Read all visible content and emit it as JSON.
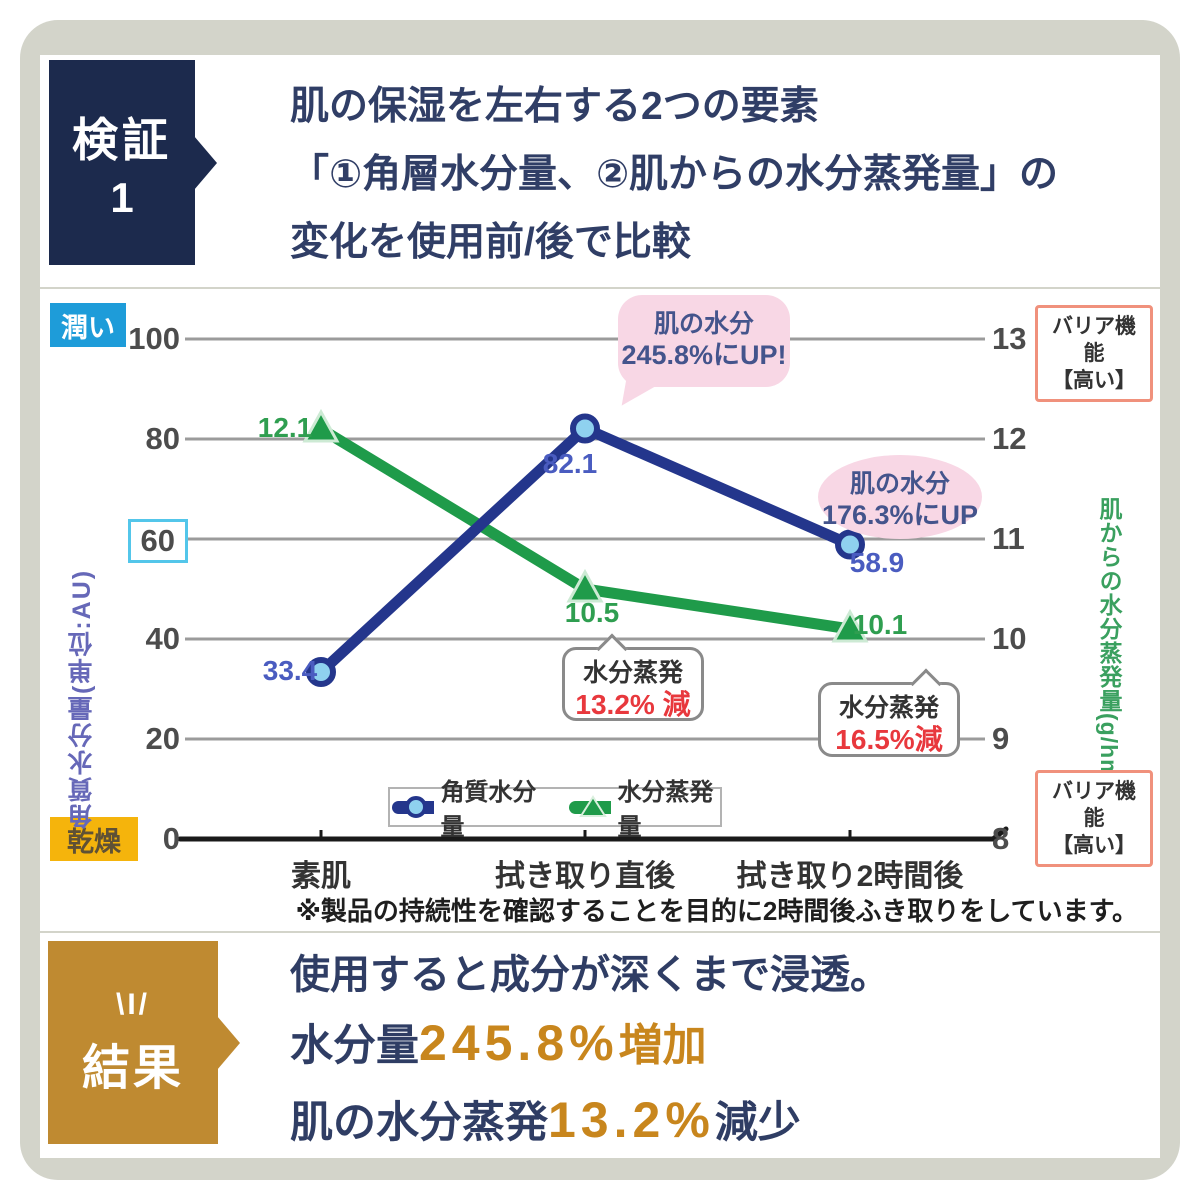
{
  "header": {
    "badge_label": "検証",
    "badge_number": "1",
    "title_lines": [
      "肌の保湿を左右する2つの要素",
      "「①角層水分量、②肌からの水分蒸発量」の",
      "変化を使用前/後で比較"
    ]
  },
  "chart": {
    "tag_top": "潤い",
    "tag_bottom": "乾燥",
    "barrier_top": {
      "line1": "バリア機能",
      "line2": "【高い】"
    },
    "barrier_bottom": {
      "line1": "バリア機能",
      "line2": "【高い】"
    },
    "annotations": {
      "bubble_peak": {
        "line1": "肌の水分",
        "line2": "245.8%にUP!"
      },
      "bubble_after": {
        "line1": "肌の水分",
        "line2": "176.3%にUP"
      },
      "callout_mid": {
        "line1": "水分蒸発",
        "line2": "13.2% 減"
      },
      "callout_last": {
        "line1": "水分蒸発",
        "line2": "16.5%減"
      }
    },
    "footnote": "※製品の持続性を確認することを目的に2時間後ふき取りをしています。"
  },
  "chart_data": {
    "type": "line",
    "categories": [
      "素肌",
      "拭き取り直後",
      "拭き取り2時間後"
    ],
    "series": [
      {
        "name": "角質水分量",
        "axis": "left",
        "marker": "circle",
        "color": "#24368c",
        "marker_fill": "#8fd1ef",
        "values": [
          33.4,
          82.1,
          58.9
        ]
      },
      {
        "name": "水分蒸発量",
        "axis": "right",
        "marker": "triangle",
        "color": "#1f9b4a",
        "marker_fill": "#1f9b4a",
        "values": [
          12.1,
          10.5,
          10.1
        ]
      }
    ],
    "left_axis": {
      "title": "角質水分量(単位:AU)",
      "range": [
        0,
        100
      ],
      "ticks": [
        100,
        80,
        60,
        40,
        20,
        0
      ],
      "highlight_tick": 60,
      "top_tag": "潤い",
      "bottom_tag": "乾燥"
    },
    "right_axis": {
      "title": "肌からの水分蒸発量(g/hm₂)",
      "range": [
        8,
        13
      ],
      "ticks": [
        13,
        12,
        11,
        10,
        9,
        8
      ]
    },
    "grid": true,
    "legend_position": "bottom"
  },
  "result": {
    "sparkle": "\\I/",
    "badge_label": "結果",
    "line1": "使用すると成分が深くまで浸透。",
    "line2": {
      "prefix": "水分量",
      "value": "245.8%",
      "suffix": "増加"
    },
    "line3": {
      "prefix": "肌の水分蒸発",
      "value": "13.2%",
      "suffix": "減少"
    }
  }
}
